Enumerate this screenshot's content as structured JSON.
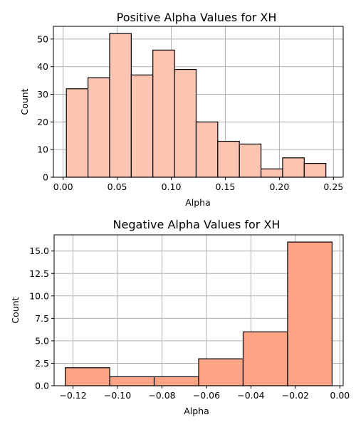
{
  "chart_data": [
    {
      "type": "bar",
      "title": "Positive Alpha Values for XH",
      "xlabel": "Alpha",
      "ylabel": "Count",
      "bar_color": "#fcc5b1",
      "xlim": [
        -0.009,
        0.259
      ],
      "ylim": [
        0,
        54.6
      ],
      "xticks": [
        0.0,
        0.05,
        0.1,
        0.15,
        0.2,
        0.25
      ],
      "xtick_labels": [
        "0.00",
        "0.05",
        "0.10",
        "0.15",
        "0.20",
        "0.25"
      ],
      "yticks": [
        0,
        10,
        20,
        30,
        40,
        50
      ],
      "ytick_labels": [
        "0",
        "10",
        "20",
        "30",
        "40",
        "50"
      ],
      "grid": true,
      "bins": [
        {
          "x0": 0.003,
          "x1": 0.023,
          "value": 32
        },
        {
          "x0": 0.023,
          "x1": 0.043,
          "value": 36
        },
        {
          "x0": 0.043,
          "x1": 0.063,
          "value": 52
        },
        {
          "x0": 0.063,
          "x1": 0.083,
          "value": 37
        },
        {
          "x0": 0.083,
          "x1": 0.103,
          "value": 46
        },
        {
          "x0": 0.103,
          "x1": 0.123,
          "value": 39
        },
        {
          "x0": 0.123,
          "x1": 0.143,
          "value": 20
        },
        {
          "x0": 0.143,
          "x1": 0.163,
          "value": 13
        },
        {
          "x0": 0.163,
          "x1": 0.183,
          "value": 12
        },
        {
          "x0": 0.183,
          "x1": 0.203,
          "value": 3
        },
        {
          "x0": 0.203,
          "x1": 0.223,
          "value": 7
        },
        {
          "x0": 0.223,
          "x1": 0.243,
          "value": 5
        }
      ]
    },
    {
      "type": "bar",
      "title": "Negative Alpha Values for XH",
      "xlabel": "Alpha",
      "ylabel": "Count",
      "bar_color": "#fca483",
      "xlim": [
        -0.1285,
        0.0015
      ],
      "ylim": [
        0,
        16.8
      ],
      "xticks": [
        -0.12,
        -0.1,
        -0.08,
        -0.06,
        -0.04,
        -0.02,
        0.0
      ],
      "xtick_labels": [
        "−0.12",
        "−0.10",
        "−0.08",
        "−0.06",
        "−0.04",
        "−0.02",
        "0.00"
      ],
      "yticks": [
        0,
        2.5,
        5,
        7.5,
        10,
        12.5,
        15
      ],
      "ytick_labels": [
        "0.0",
        "2.5",
        "5.0",
        "7.5",
        "10.0",
        "12.5",
        "15.0"
      ],
      "grid": true,
      "bins": [
        {
          "x0": -0.1235,
          "x1": -0.1035,
          "value": 2
        },
        {
          "x0": -0.1035,
          "x1": -0.0835,
          "value": 1
        },
        {
          "x0": -0.0835,
          "x1": -0.0635,
          "value": 1
        },
        {
          "x0": -0.0635,
          "x1": -0.0435,
          "value": 3
        },
        {
          "x0": -0.0435,
          "x1": -0.0235,
          "value": 6
        },
        {
          "x0": -0.0235,
          "x1": -0.0035,
          "value": 16
        }
      ]
    }
  ]
}
